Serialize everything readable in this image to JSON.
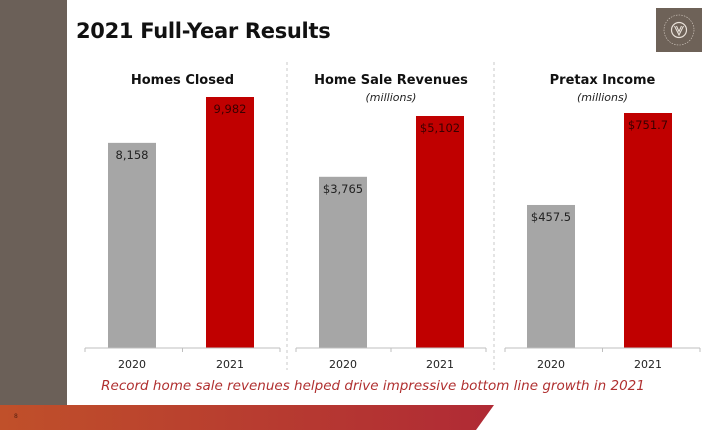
{
  "slide": {
    "title": "2021 Full-Year Results",
    "caption": "Record home sale revenues helped drive impressive bottom line growth in 2021",
    "page_number": "8",
    "colors": {
      "sidebar": "#6b6058",
      "bar_2020": "#a6a6a6",
      "bar_2021": "#c00000",
      "caption": "#b03030",
      "footer_start": "#c0502a",
      "footer_end": "#b02a35"
    }
  },
  "logo": {
    "icon": "company-seal-icon"
  },
  "chart_data": [
    {
      "type": "bar",
      "title": "Homes Closed",
      "subtitle": "",
      "categories": [
        "2020",
        "2021"
      ],
      "values": [
        8158,
        9982
      ],
      "labels": [
        "8,158",
        "9,982"
      ],
      "ylim": [
        0,
        9982
      ]
    },
    {
      "type": "bar",
      "title": "Home Sale Revenues",
      "subtitle": "(millions)",
      "categories": [
        "2020",
        "2021"
      ],
      "values": [
        3765,
        5102
      ],
      "labels": [
        "$3,765",
        "$5,102"
      ],
      "ylim": [
        0,
        5102
      ]
    },
    {
      "type": "bar",
      "title": "Pretax Income",
      "subtitle": "(millions)",
      "categories": [
        "2020",
        "2021"
      ],
      "values": [
        457.5,
        751.7
      ],
      "labels": [
        "$457.5",
        "$751.7"
      ],
      "ylim": [
        0,
        751.7
      ]
    }
  ]
}
